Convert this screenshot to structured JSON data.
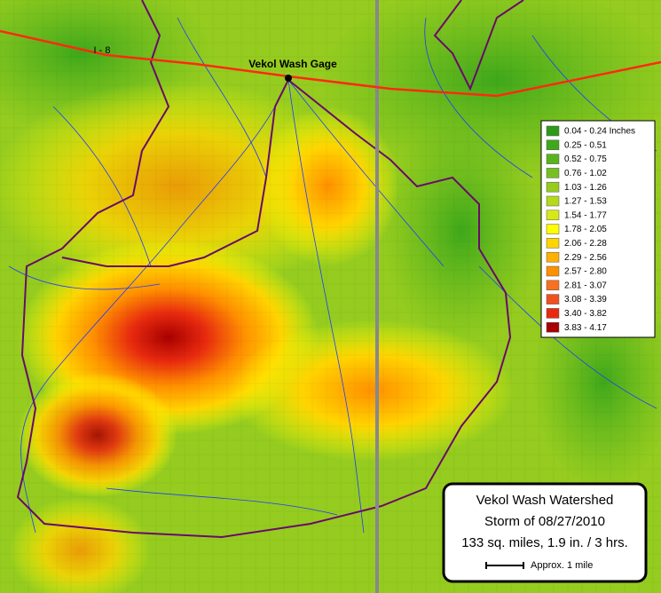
{
  "map": {
    "highway_label": "I - 8",
    "gage_label": "Vekol Wash Gage",
    "legend": [
      {
        "label": "0.04 - 0.24 Inches",
        "color": "#2e9a1a"
      },
      {
        "label": "0.25 - 0.51",
        "color": "#3ea81a"
      },
      {
        "label": "0.52 - 0.75",
        "color": "#58b31d"
      },
      {
        "label": "0.76 - 1.02",
        "color": "#76c021"
      },
      {
        "label": "1.03 - 1.26",
        "color": "#95cc1f"
      },
      {
        "label": "1.27 - 1.53",
        "color": "#b5d91b"
      },
      {
        "label": "1.54 - 1.77",
        "color": "#d8e817"
      },
      {
        "label": "1.78 - 2.05",
        "color": "#ffff00"
      },
      {
        "label": "2.06 - 2.28",
        "color": "#ffd400"
      },
      {
        "label": "2.29 - 2.56",
        "color": "#ffb000"
      },
      {
        "label": "2.57 - 2.80",
        "color": "#ff9000"
      },
      {
        "label": "2.81 - 3.07",
        "color": "#f87020"
      },
      {
        "label": "3.08 - 3.39",
        "color": "#f05020"
      },
      {
        "label": "3.40 - 3.82",
        "color": "#e82a0f"
      },
      {
        "label": "3.83 - 4.17",
        "color": "#a80000"
      }
    ],
    "title_box": {
      "title": "Vekol Wash Watershed",
      "storm": "Storm of 08/27/2010",
      "summary": "133 sq. miles, 1.9 in. / 3 hrs.",
      "scale": "Approx. 1 mile"
    }
  }
}
